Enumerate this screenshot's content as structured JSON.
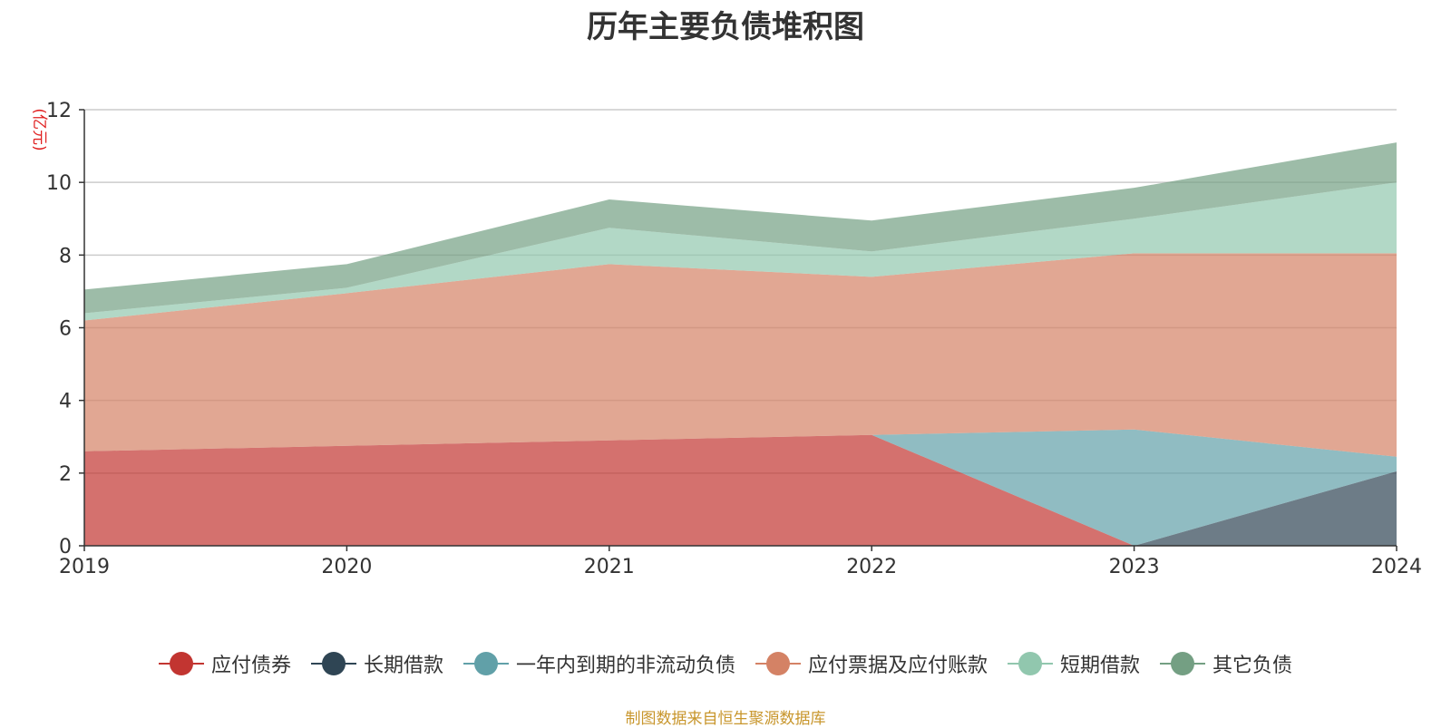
{
  "chart_data": {
    "type": "area",
    "stacked": true,
    "title": "历年主要负债堆积图",
    "unit_label": "(亿元)",
    "categories": [
      "2019",
      "2020",
      "2021",
      "2022",
      "2023",
      "2024"
    ],
    "ylim": [
      0,
      12
    ],
    "y_ticks": [
      0,
      2,
      4,
      6,
      8,
      10,
      12
    ],
    "grid": true,
    "legend_position": "bottom",
    "series": [
      {
        "name": "应付债券",
        "color": "#c23531",
        "values": [
          2.6,
          2.75,
          2.9,
          3.05,
          0,
          0
        ]
      },
      {
        "name": "长期借款",
        "color": "#2f4554",
        "values": [
          0,
          0,
          0,
          0,
          0,
          2.05
        ]
      },
      {
        "name": "一年内到期的非流动负债",
        "color": "#61a0a8",
        "values": [
          0,
          0,
          0,
          0,
          3.2,
          0.4
        ]
      },
      {
        "name": "应付票据及应付账款",
        "color": "#d48265",
        "values": [
          3.6,
          4.2,
          4.85,
          4.35,
          4.85,
          5.6
        ]
      },
      {
        "name": "短期借款",
        "color": "#91c7ae",
        "values": [
          0.2,
          0.15,
          1.0,
          0.7,
          0.95,
          1.95
        ]
      },
      {
        "name": "其它负债",
        "color": "#749f83",
        "values": [
          0.65,
          0.65,
          0.78,
          0.85,
          0.85,
          1.1
        ]
      }
    ]
  },
  "source_note": "制图数据来自恒生聚源数据库"
}
